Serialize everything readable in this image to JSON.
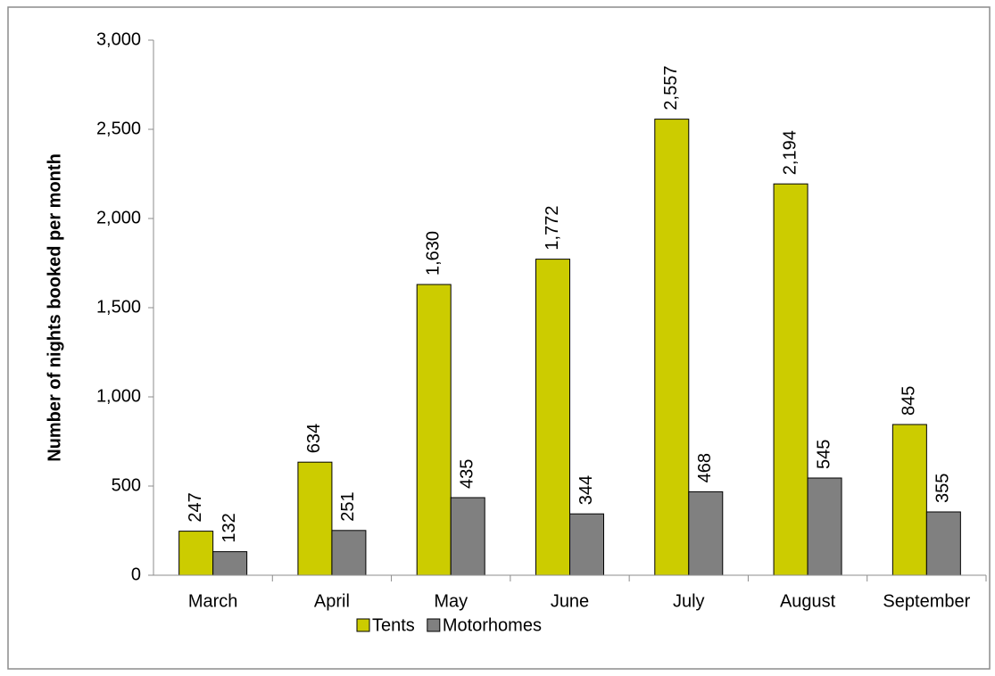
{
  "chart_data": {
    "type": "bar",
    "y_label": "Number of nights booked per month",
    "categories": [
      "March",
      "April",
      "May",
      "June",
      "July",
      "August",
      "September"
    ],
    "series": [
      {
        "name": "Tents",
        "color": "#cccc00",
        "values": [
          247,
          634,
          1630,
          1772,
          2557,
          2194,
          845
        ],
        "value_labels": [
          "247",
          "634",
          "1,630",
          "1,772",
          "2,557",
          "2,194",
          "845"
        ]
      },
      {
        "name": "Motorhomes",
        "color": "#808080",
        "values": [
          132,
          251,
          435,
          344,
          468,
          545,
          355
        ],
        "value_labels": [
          "132",
          "251",
          "435",
          "344",
          "468",
          "545",
          "355"
        ]
      }
    ],
    "ylim": [
      0,
      3000
    ],
    "yticks": [
      0,
      {
        "value": 500,
        "label": "500"
      },
      {
        "value": 1000,
        "label": "1,000"
      },
      {
        "value": 1500,
        "label": "1,500"
      },
      {
        "value": 2000,
        "label": "2,000"
      },
      {
        "value": 2500,
        "label": "2,500"
      },
      {
        "value": 3000,
        "label": "3,000"
      }
    ],
    "legend": "bottom"
  }
}
